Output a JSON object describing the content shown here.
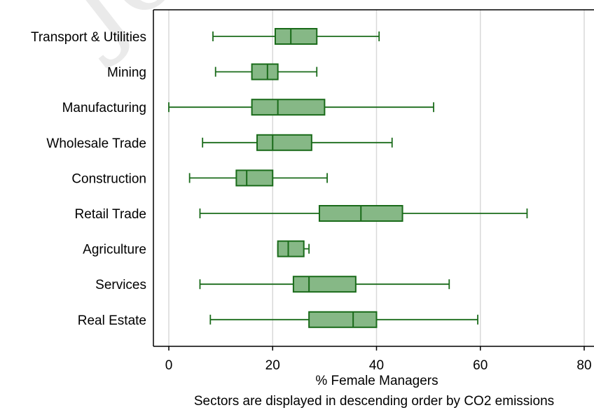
{
  "watermark": "Jou",
  "chart_data": {
    "type": "boxplot",
    "orientation": "horizontal",
    "xlabel": "% Female Managers",
    "note": "Sectors are displayed in descending order by CO2 emissions",
    "xlim": [
      0,
      80
    ],
    "xticks": [
      0,
      20,
      40,
      60,
      80
    ],
    "grid": true,
    "colors": {
      "box_fill": "#86b886",
      "box_stroke": "#1a6b1a",
      "grid": "#d9d9d9",
      "axis": "#000000"
    },
    "categories": [
      "Transport & Utilities",
      "Mining",
      "Manufacturing",
      "Wholesale Trade",
      "Construction",
      "Retail Trade",
      "Agriculture",
      "Services",
      "Real Estate"
    ],
    "boxes": [
      {
        "category": "Transport & Utilities",
        "min": 8.5,
        "q1": 20.5,
        "median": 23.5,
        "q3": 28.5,
        "max": 40.5
      },
      {
        "category": "Mining",
        "min": 9,
        "q1": 16,
        "median": 19,
        "q3": 21,
        "max": 28.5
      },
      {
        "category": "Manufacturing",
        "min": 0,
        "q1": 16,
        "median": 21,
        "q3": 30,
        "max": 51
      },
      {
        "category": "Wholesale Trade",
        "min": 6.5,
        "q1": 17,
        "median": 20,
        "q3": 27.5,
        "max": 43
      },
      {
        "category": "Construction",
        "min": 4,
        "q1": 13,
        "median": 15,
        "q3": 20,
        "max": 30.5
      },
      {
        "category": "Retail Trade",
        "min": 6,
        "q1": 29,
        "median": 37,
        "q3": 45,
        "max": 69
      },
      {
        "category": "Agriculture",
        "min": 21,
        "q1": 21,
        "median": 23,
        "q3": 26,
        "max": 27
      },
      {
        "category": "Services",
        "min": 6,
        "q1": 24,
        "median": 27,
        "q3": 36,
        "max": 54
      },
      {
        "category": "Real Estate",
        "min": 8,
        "q1": 27,
        "median": 35.5,
        "q3": 40,
        "max": 59.5
      }
    ]
  }
}
